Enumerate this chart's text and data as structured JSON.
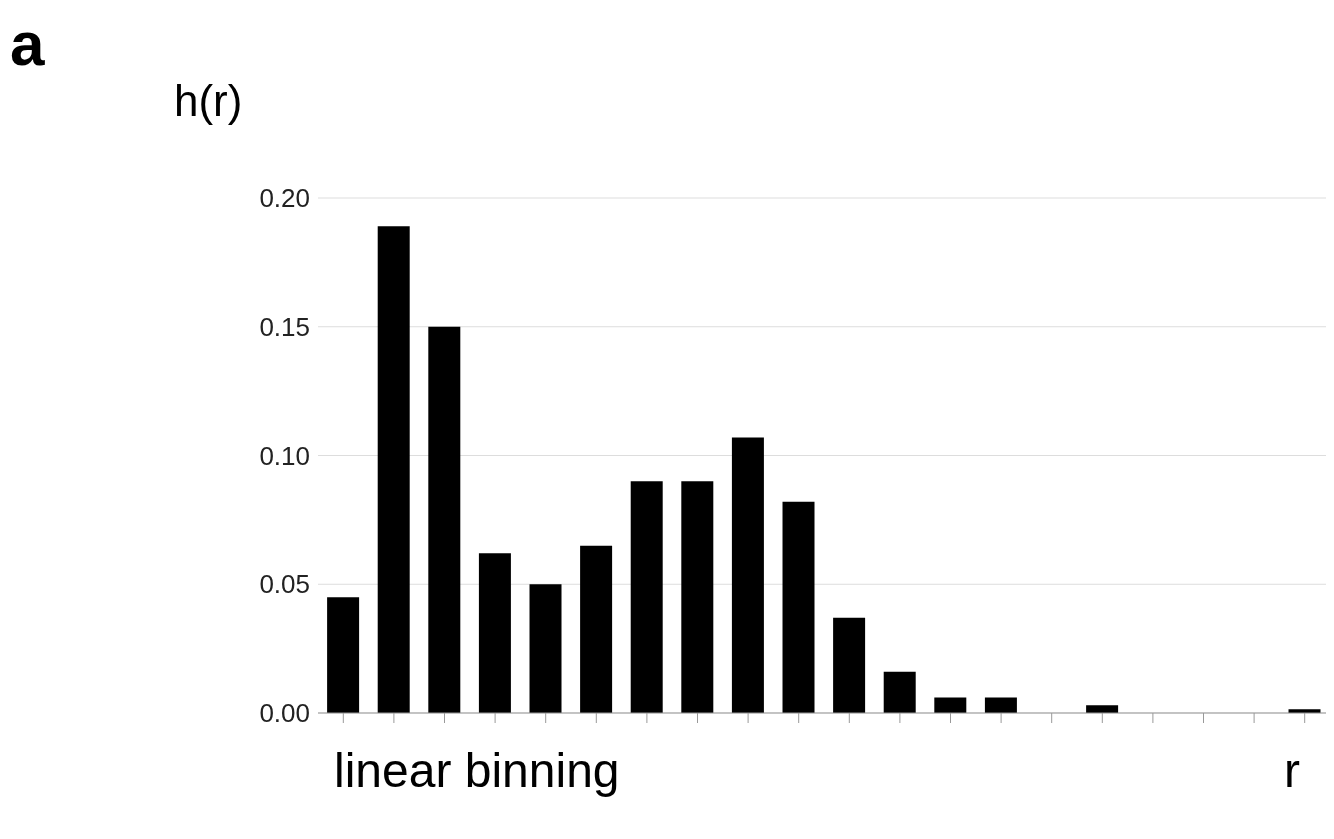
{
  "chart_data": {
    "type": "bar",
    "ylabel": "h(r)",
    "xlabel": "r",
    "annotations": [
      "a",
      "linear binning"
    ],
    "categories": [
      null,
      null,
      null,
      null,
      null,
      null,
      null,
      null,
      null,
      null,
      null,
      null,
      null,
      null,
      null,
      null,
      null,
      null,
      null,
      null
    ],
    "series": [
      {
        "color": "#000000",
        "values": [
          0.045,
          0.189,
          0.15,
          0.062,
          0.05,
          0.065,
          0.09,
          0.09,
          0.107,
          0.082,
          0.037,
          0.016,
          0.006,
          0.006,
          0,
          0.003,
          0,
          0,
          0,
          0.0015
        ]
      }
    ],
    "ylim": [
      0,
      0.2
    ],
    "yticks": [
      {
        "value": 0,
        "label": "0.00"
      },
      {
        "value": 0.05,
        "label": "0.05"
      },
      {
        "value": 0.1,
        "label": "0.10"
      },
      {
        "value": 0.15,
        "label": "0.15"
      },
      {
        "value": 0.2,
        "label": "0.20"
      }
    ],
    "grid": "y",
    "legend": false
  }
}
